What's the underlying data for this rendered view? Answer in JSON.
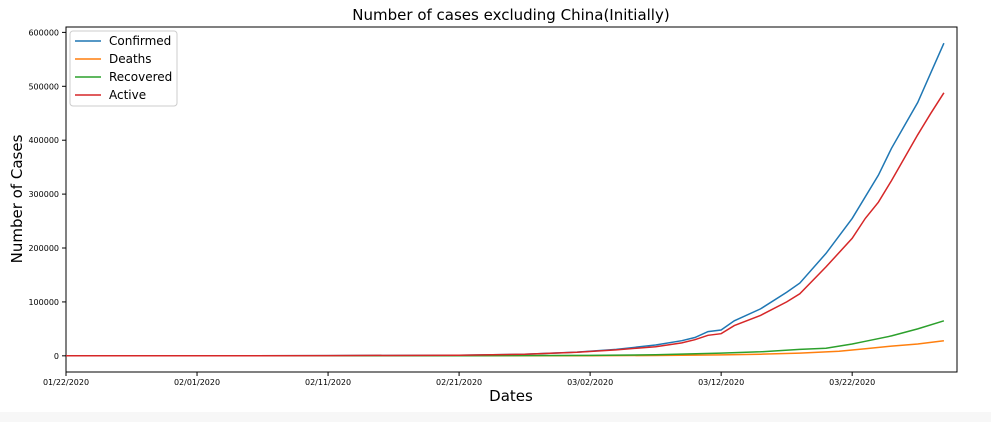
{
  "chart_data": {
    "type": "line",
    "title": "Number of cases excluding China(Initially)",
    "xlabel": "Dates",
    "ylabel": "Number of Cases",
    "x_start": "01/22/2020",
    "x_end": "03/30/2020",
    "x_ticks": [
      "01/22/2020",
      "02/01/2020",
      "02/11/2020",
      "02/21/2020",
      "03/02/2020",
      "03/12/2020",
      "03/22/2020"
    ],
    "y_ticks": [
      0,
      100000,
      200000,
      300000,
      400000,
      500000,
      600000
    ],
    "ylim": [
      -30000,
      610000
    ],
    "grid": false,
    "legend_position": "top-left",
    "series": [
      {
        "name": "Confirmed",
        "color": "#1f77b4",
        "points": [
          [
            "01/22/2020",
            0
          ],
          [
            "02/01/2020",
            100
          ],
          [
            "02/11/2020",
            400
          ],
          [
            "02/21/2020",
            1200
          ],
          [
            "02/26/2020",
            3000
          ],
          [
            "03/01/2020",
            7000
          ],
          [
            "03/04/2020",
            12000
          ],
          [
            "03/07/2020",
            20000
          ],
          [
            "03/09/2020",
            28000
          ],
          [
            "03/10/2020",
            34000
          ],
          [
            "03/11/2020",
            45000
          ],
          [
            "03/12/2020",
            48000
          ],
          [
            "03/13/2020",
            65000
          ],
          [
            "03/15/2020",
            87000
          ],
          [
            "03/17/2020",
            118000
          ],
          [
            "03/18/2020",
            135000
          ],
          [
            "03/20/2020",
            190000
          ],
          [
            "03/22/2020",
            255000
          ],
          [
            "03/24/2020",
            335000
          ],
          [
            "03/25/2020",
            385000
          ],
          [
            "03/27/2020",
            470000
          ],
          [
            "03/28/2020",
            525000
          ],
          [
            "03/29/2020",
            580000
          ]
        ]
      },
      {
        "name": "Deaths",
        "color": "#ff7f0e",
        "points": [
          [
            "01/22/2020",
            0
          ],
          [
            "02/21/2020",
            30
          ],
          [
            "03/02/2020",
            250
          ],
          [
            "03/07/2020",
            700
          ],
          [
            "03/12/2020",
            1800
          ],
          [
            "03/15/2020",
            3000
          ],
          [
            "03/18/2020",
            5000
          ],
          [
            "03/21/2020",
            8500
          ],
          [
            "03/23/2020",
            13000
          ],
          [
            "03/25/2020",
            18000
          ],
          [
            "03/27/2020",
            22000
          ],
          [
            "03/29/2020",
            28000
          ]
        ]
      },
      {
        "name": "Recovered",
        "color": "#2ca02c",
        "points": [
          [
            "01/22/2020",
            0
          ],
          [
            "02/21/2020",
            100
          ],
          [
            "03/02/2020",
            800
          ],
          [
            "03/07/2020",
            2000
          ],
          [
            "03/12/2020",
            5000
          ],
          [
            "03/15/2020",
            7500
          ],
          [
            "03/18/2020",
            12000
          ],
          [
            "03/20/2020",
            14000
          ],
          [
            "03/22/2020",
            22000
          ],
          [
            "03/23/2020",
            27000
          ],
          [
            "03/25/2020",
            37000
          ],
          [
            "03/27/2020",
            50000
          ],
          [
            "03/29/2020",
            65000
          ]
        ]
      },
      {
        "name": "Active",
        "color": "#d62728",
        "points": [
          [
            "01/22/2020",
            0
          ],
          [
            "02/01/2020",
            100
          ],
          [
            "02/11/2020",
            400
          ],
          [
            "02/21/2020",
            1100
          ],
          [
            "02/26/2020",
            2800
          ],
          [
            "03/01/2020",
            6500
          ],
          [
            "03/04/2020",
            11000
          ],
          [
            "03/07/2020",
            17000
          ],
          [
            "03/09/2020",
            24000
          ],
          [
            "03/10/2020",
            30000
          ],
          [
            "03/11/2020",
            38000
          ],
          [
            "03/12/2020",
            41000
          ],
          [
            "03/13/2020",
            56000
          ],
          [
            "03/15/2020",
            75000
          ],
          [
            "03/17/2020",
            100000
          ],
          [
            "03/18/2020",
            115000
          ],
          [
            "03/20/2020",
            165000
          ],
          [
            "03/22/2020",
            218000
          ],
          [
            "03/23/2020",
            255000
          ],
          [
            "03/24/2020",
            285000
          ],
          [
            "03/25/2020",
            325000
          ],
          [
            "03/27/2020",
            410000
          ],
          [
            "03/28/2020",
            450000
          ],
          [
            "03/29/2020",
            488000
          ]
        ]
      }
    ]
  }
}
